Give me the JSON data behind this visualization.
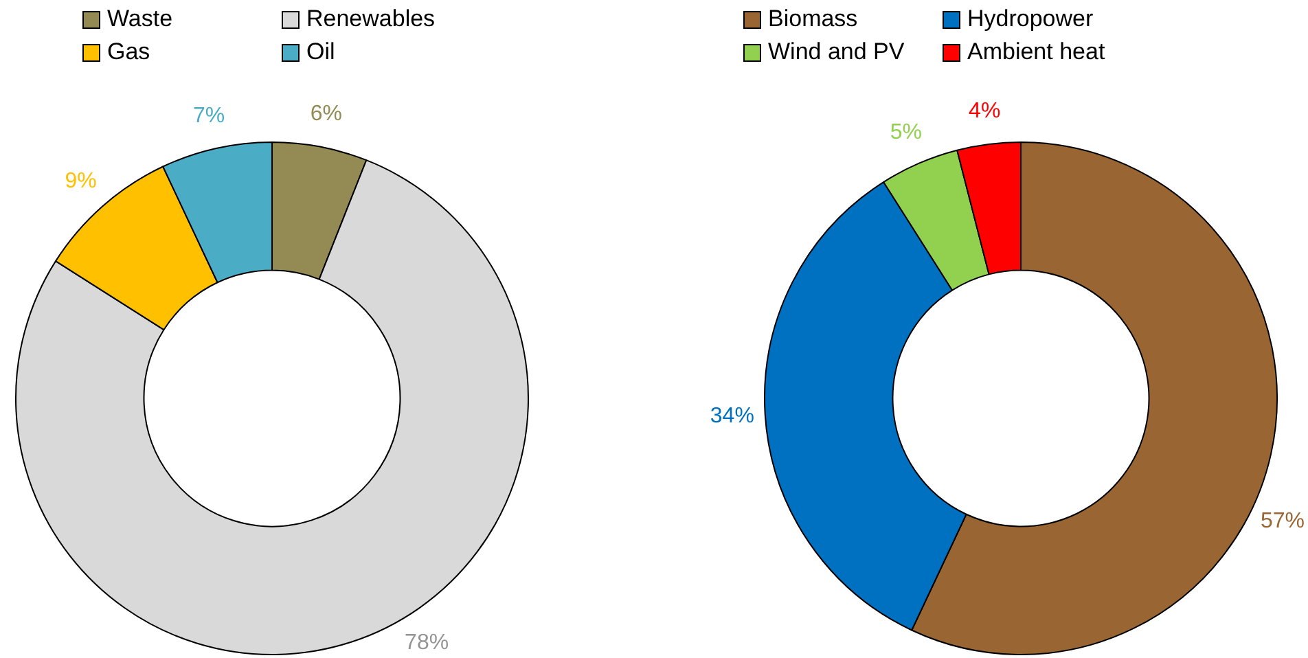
{
  "chart_data": [
    {
      "type": "donut",
      "categories": [
        "Waste",
        "Renewables",
        "Gas",
        "Oil"
      ],
      "values": [
        6,
        78,
        9,
        7
      ],
      "colors": [
        "#948a54",
        "#d9d9d9",
        "#ffc000",
        "#4bacc6"
      ],
      "value_labels": [
        "6%",
        "78%",
        "9%",
        "7%"
      ],
      "legend": "top"
    },
    {
      "type": "donut",
      "categories": [
        "Biomass",
        "Hydropower",
        "Wind and PV",
        "Ambient heat"
      ],
      "values": [
        57,
        34,
        5,
        4
      ],
      "colors": [
        "#996633",
        "#0070c0",
        "#92d050",
        "#ff0000"
      ],
      "value_labels": [
        "57%",
        "34%",
        "5%",
        "4%"
      ],
      "legend": "top"
    }
  ]
}
